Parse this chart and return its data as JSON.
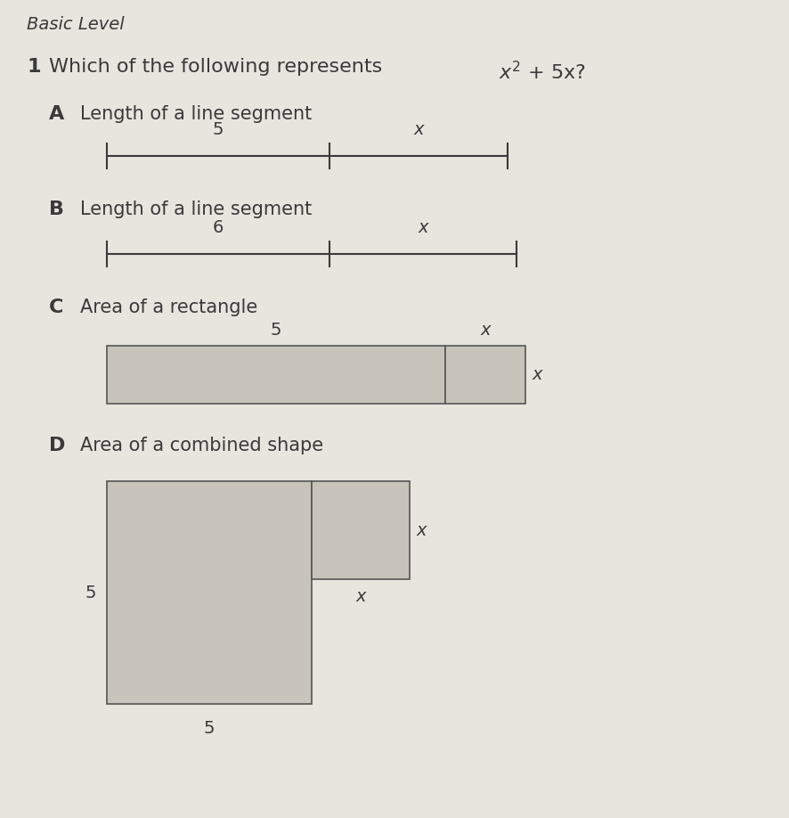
{
  "background_color": "#e8e4de",
  "title_level": "Basic Level",
  "question_number": "1",
  "question_text": "Which of the following represents x² + 5x?",
  "font_color": "#3a3a3a",
  "rect_fill": "#c8c3bb",
  "rect_edge": "#555555",
  "line_color": "#3a3a3a",
  "title_fontsize": 14,
  "question_fontsize": 16,
  "label_fontsize": 16,
  "desc_fontsize": 15,
  "annot_fontsize": 14,
  "options": [
    {
      "label": "A",
      "desc": "Length of a line segment",
      "seg1": "5",
      "seg2": "x"
    },
    {
      "label": "B",
      "desc": "Length of a line segment",
      "seg1": "6",
      "seg2": "x"
    },
    {
      "label": "C",
      "desc": "Area of a rectangle"
    },
    {
      "label": "D",
      "desc": "Area of a combined shape"
    }
  ]
}
